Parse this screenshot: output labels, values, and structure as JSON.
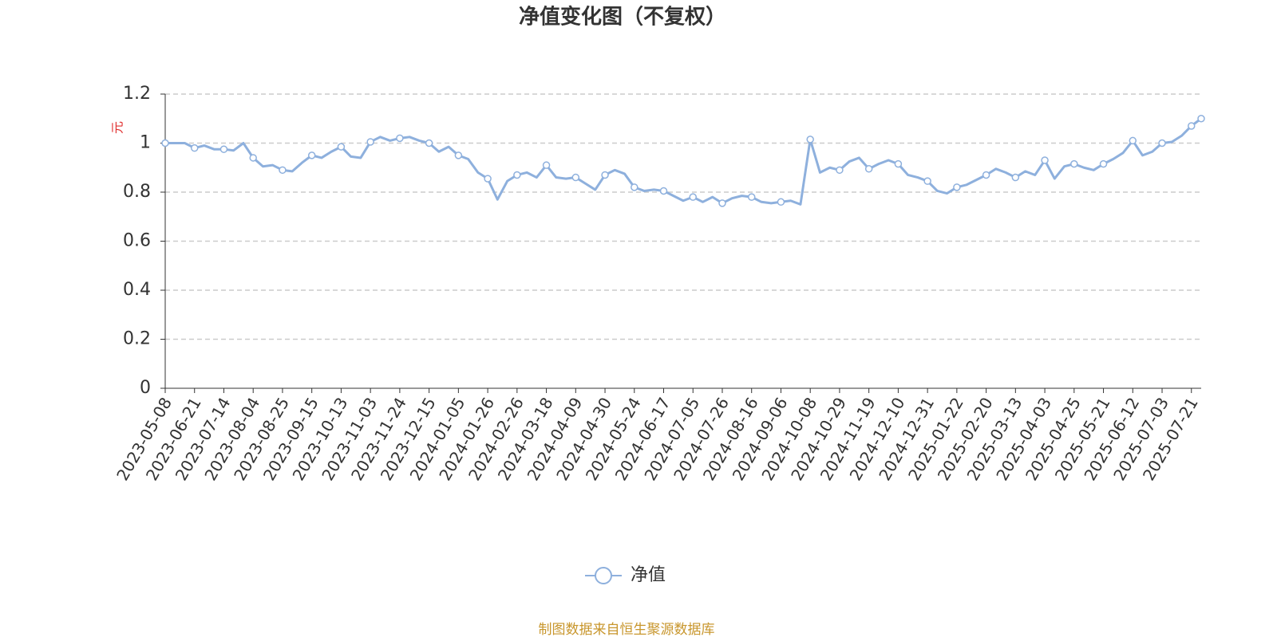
{
  "chart_data": {
    "type": "line",
    "title": "净值变化图（不复权）",
    "y_label": "元",
    "source": "制图数据来自恒生聚源数据库",
    "categories": [
      "2023-05-08",
      null,
      null,
      "2023-06-21",
      null,
      null,
      "2023-07-14",
      null,
      null,
      "2023-08-04",
      null,
      null,
      "2023-08-25",
      null,
      null,
      "2023-09-15",
      null,
      null,
      "2023-10-13",
      null,
      null,
      "2023-11-03",
      null,
      null,
      "2023-11-24",
      null,
      null,
      "2023-12-15",
      null,
      null,
      "2024-01-05",
      null,
      null,
      "2024-01-26",
      null,
      null,
      "2024-02-26",
      null,
      null,
      "2024-03-18",
      null,
      null,
      "2024-04-09",
      null,
      null,
      "2024-04-30",
      null,
      null,
      "2024-05-24",
      null,
      null,
      "2024-06-17",
      null,
      null,
      "2024-07-05",
      null,
      null,
      "2024-07-26",
      null,
      null,
      "2024-08-16",
      null,
      null,
      "2024-09-06",
      null,
      null,
      "2024-10-08",
      null,
      null,
      "2024-10-29",
      null,
      null,
      "2024-11-19",
      null,
      null,
      "2024-12-10",
      null,
      null,
      "2024-12-31",
      null,
      null,
      "2025-01-22",
      null,
      null,
      "2025-02-20",
      null,
      null,
      "2025-03-13",
      null,
      null,
      "2025-04-03",
      null,
      null,
      "2025-04-25",
      null,
      null,
      "2025-05-21",
      null,
      null,
      "2025-06-12",
      null,
      null,
      "2025-07-03",
      null,
      null,
      "2025-07-21",
      null
    ],
    "series": [
      {
        "name": "净值",
        "color": "#8eb0dd",
        "values": [
          1.0,
          1.0,
          1.0,
          0.98,
          0.99,
          0.975,
          0.975,
          0.97,
          1.0,
          0.94,
          0.905,
          0.91,
          0.89,
          0.885,
          0.92,
          0.95,
          0.94,
          0.965,
          0.985,
          0.945,
          0.94,
          1.005,
          1.025,
          1.01,
          1.02,
          1.025,
          1.01,
          1.0,
          0.965,
          0.985,
          0.95,
          0.935,
          0.88,
          0.855,
          0.77,
          0.845,
          0.87,
          0.88,
          0.86,
          0.91,
          0.86,
          0.855,
          0.86,
          0.835,
          0.81,
          0.87,
          0.89,
          0.875,
          0.82,
          0.805,
          0.81,
          0.805,
          0.785,
          0.765,
          0.78,
          0.76,
          0.78,
          0.755,
          0.775,
          0.785,
          0.78,
          0.76,
          0.755,
          0.76,
          0.765,
          0.75,
          1.015,
          0.88,
          0.9,
          0.89,
          0.925,
          0.94,
          0.895,
          0.915,
          0.93,
          0.915,
          0.87,
          0.86,
          0.845,
          0.805,
          0.795,
          0.82,
          0.83,
          0.85,
          0.87,
          0.895,
          0.88,
          0.86,
          0.885,
          0.87,
          0.93,
          0.855,
          0.905,
          0.915,
          0.9,
          0.89,
          0.915,
          0.935,
          0.96,
          1.01,
          0.95,
          0.965,
          1.0,
          1.005,
          1.03,
          1.07,
          1.1
        ]
      }
    ],
    "ylim": [
      0,
      1.2
    ],
    "yticks": [
      0,
      0.2,
      0.4,
      0.6,
      0.8,
      1,
      1.2
    ],
    "grid": true
  }
}
